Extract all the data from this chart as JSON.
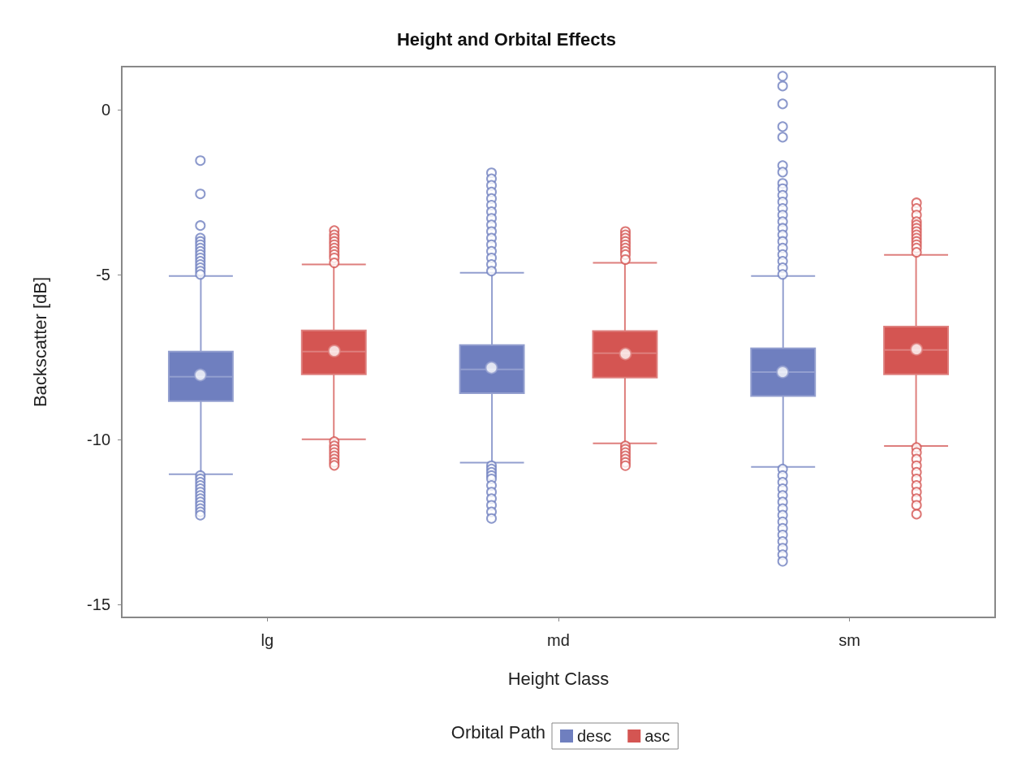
{
  "chart_data": {
    "type": "box",
    "title": "Height and Orbital Effects",
    "xlabel": "Height Class",
    "ylabel": "Backscatter [dB]",
    "legend_title": "Orbital Path",
    "categories": [
      "lg",
      "md",
      "sm"
    ],
    "ylim": [
      -15.4,
      1.3
    ],
    "yticks": [
      -15,
      -10,
      -5,
      0
    ],
    "grid": false,
    "legend": "bottom",
    "marker": "circle",
    "series": [
      {
        "name": "desc",
        "color": "#6f7fbf",
        "boxes": [
          {
            "low": -11.06,
            "q1": -8.84,
            "median": -8.1,
            "q3": -7.34,
            "high": -5.05,
            "mean": -8.05,
            "outliers": [
              -1.55,
              -2.56,
              -3.52,
              -3.9,
              -4.0,
              -4.1,
              -4.2,
              -4.3,
              -4.4,
              -4.5,
              -4.6,
              -4.7,
              -4.8,
              -4.9,
              -5.0,
              -11.1,
              -11.2,
              -11.3,
              -11.4,
              -11.5,
              -11.6,
              -11.7,
              -11.8,
              -11.9,
              -12.0,
              -12.1,
              -12.2,
              -12.3
            ]
          },
          {
            "low": -10.71,
            "q1": -8.6,
            "median": -7.88,
            "q3": -7.14,
            "high": -4.95,
            "mean": -7.83,
            "outliers": [
              -1.92,
              -2.1,
              -2.3,
              -2.5,
              -2.7,
              -2.9,
              -3.1,
              -3.3,
              -3.5,
              -3.7,
              -3.9,
              -4.1,
              -4.3,
              -4.5,
              -4.7,
              -4.9,
              -10.8,
              -10.9,
              -11.0,
              -11.1,
              -11.2,
              -11.4,
              -11.6,
              -11.8,
              -12.0,
              -12.2,
              -12.4
            ]
          },
          {
            "low": -10.84,
            "q1": -8.69,
            "median": -7.96,
            "q3": -7.24,
            "high": -5.05,
            "mean": -7.96,
            "outliers": [
              1.01,
              0.71,
              0.17,
              -0.52,
              -0.84,
              -1.7,
              -1.9,
              -2.24,
              -2.4,
              -2.6,
              -2.8,
              -3.0,
              -3.2,
              -3.4,
              -3.6,
              -3.8,
              -4.0,
              -4.2,
              -4.4,
              -4.6,
              -4.8,
              -5.0,
              -10.9,
              -11.1,
              -11.3,
              -11.5,
              -11.7,
              -11.9,
              -12.1,
              -12.3,
              -12.5,
              -12.7,
              -12.9,
              -13.1,
              -13.3,
              -13.5,
              -13.7
            ]
          }
        ]
      },
      {
        "name": "asc",
        "color": "#d45552",
        "boxes": [
          {
            "low": -10.0,
            "q1": -8.03,
            "median": -7.34,
            "q3": -6.7,
            "high": -4.7,
            "mean": -7.32,
            "outliers": [
              -3.67,
              -3.8,
              -3.9,
              -4.0,
              -4.1,
              -4.2,
              -4.3,
              -4.4,
              -4.5,
              -4.65,
              -10.07,
              -10.2,
              -10.3,
              -10.4,
              -10.5,
              -10.6,
              -10.7,
              -10.79
            ]
          },
          {
            "low": -10.12,
            "q1": -8.13,
            "median": -7.39,
            "q3": -6.72,
            "high": -4.65,
            "mean": -7.41,
            "outliers": [
              -3.7,
              -3.8,
              -3.9,
              -4.0,
              -4.1,
              -4.2,
              -4.3,
              -4.4,
              -4.55,
              -10.2,
              -10.3,
              -10.4,
              -10.5,
              -10.6,
              -10.7,
              -10.8
            ]
          },
          {
            "low": -10.2,
            "q1": -8.03,
            "median": -7.29,
            "q3": -6.58,
            "high": -4.41,
            "mean": -7.27,
            "outliers": [
              -2.83,
              -3.0,
              -3.2,
              -3.4,
              -3.5,
              -3.6,
              -3.7,
              -3.8,
              -3.9,
              -4.0,
              -4.1,
              -4.2,
              -4.33,
              -10.25,
              -10.4,
              -10.6,
              -10.8,
              -11.0,
              -11.2,
              -11.4,
              -11.6,
              -11.8,
              -12.0,
              -12.27
            ]
          }
        ]
      }
    ]
  }
}
